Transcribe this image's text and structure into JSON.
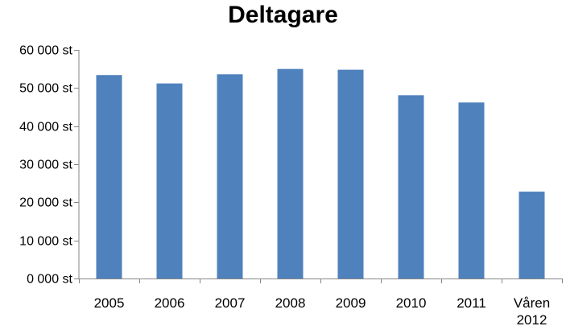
{
  "chart_data": {
    "type": "bar",
    "title": "Deltagare",
    "xlabel": "",
    "ylabel": "",
    "categories": [
      "2005",
      "2006",
      "2007",
      "2008",
      "2009",
      "2010",
      "2011",
      "Våren 2012"
    ],
    "values": [
      53400,
      51200,
      53600,
      55000,
      54800,
      48100,
      46200,
      22800
    ],
    "ylim": [
      0,
      60000
    ],
    "ytick_values": [
      0,
      10000,
      20000,
      30000,
      40000,
      50000,
      60000
    ],
    "ytick_labels": [
      "0 000 st",
      "10 000 st",
      "20 000 st",
      "30 000 st",
      "40 000 st",
      "50 000 st",
      "60 000 st"
    ],
    "grid": false,
    "legend": "none",
    "bar_color": "#4f81bd"
  }
}
